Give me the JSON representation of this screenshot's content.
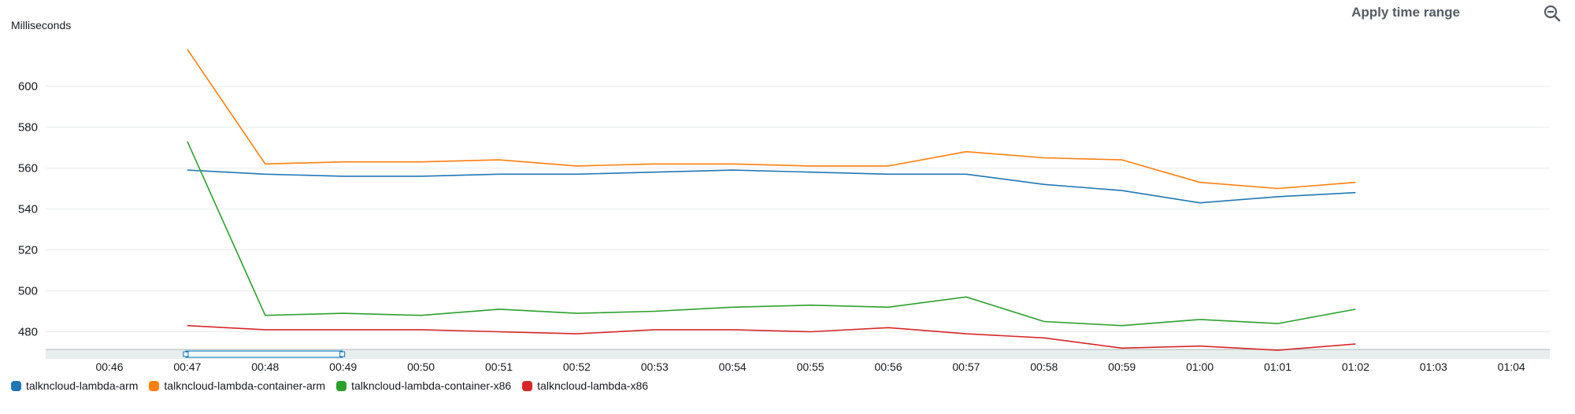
{
  "header": {
    "apply_label": "Apply time range"
  },
  "icons": {
    "zoom": "zoom-out-icon"
  },
  "chart_data": {
    "type": "line",
    "ylabel": "Milliseconds",
    "xlabel": "",
    "title": "",
    "x": [
      "00:46",
      "00:47",
      "00:48",
      "00:49",
      "00:50",
      "00:51",
      "00:52",
      "00:53",
      "00:54",
      "00:55",
      "00:56",
      "00:57",
      "00:58",
      "00:59",
      "01:00",
      "01:01",
      "01:02",
      "01:03",
      "01:04"
    ],
    "yticks": [
      480,
      500,
      520,
      540,
      560,
      580,
      600
    ],
    "ylim": [
      471,
      622
    ],
    "grid": true,
    "legend_position": "bottom-left",
    "series": [
      {
        "name": "talkncloud-lambda-arm",
        "color": "#1f77b4",
        "values": [
          null,
          559,
          557,
          556,
          556,
          557,
          557,
          558,
          559,
          558,
          557,
          557,
          552,
          549,
          543,
          546,
          548,
          null,
          null
        ]
      },
      {
        "name": "talkncloud-lambda-container-arm",
        "color": "#ff7f0e",
        "values": [
          null,
          618,
          562,
          563,
          563,
          564,
          561,
          562,
          562,
          561,
          561,
          568,
          565,
          564,
          553,
          550,
          553,
          null,
          null
        ]
      },
      {
        "name": "talkncloud-lambda-container-x86",
        "color": "#2ca02c",
        "values": [
          null,
          573,
          488,
          489,
          488,
          491,
          489,
          490,
          492,
          493,
          492,
          497,
          485,
          483,
          486,
          484,
          491,
          null,
          null
        ]
      },
      {
        "name": "talkncloud-lambda-x86",
        "color": "#d62728",
        "values": [
          null,
          483,
          481,
          481,
          481,
          480,
          479,
          481,
          481,
          480,
          482,
          479,
          477,
          472,
          473,
          471,
          474,
          null,
          null
        ]
      }
    ]
  }
}
